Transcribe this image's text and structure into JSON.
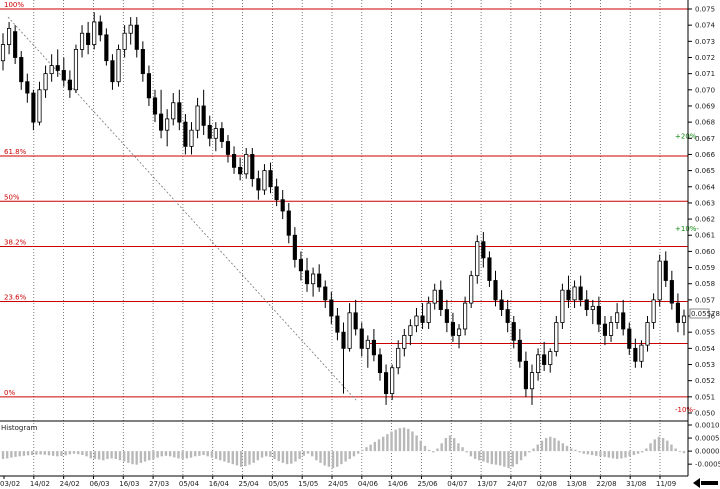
{
  "chart_data": {
    "type": "candlestick",
    "price_axis": {
      "min": 0.05,
      "max": 0.075,
      "tick_labels": [
        "0.075",
        "0.074",
        "0.073",
        "0.072",
        "0.071",
        "0.070",
        "0.069",
        "0.068",
        "0.067",
        "0.066",
        "0.065",
        "0.064",
        "0.063",
        "0.062",
        "0.061",
        "0.060",
        "0.059",
        "0.058",
        "0.057",
        "0.056",
        "0.055",
        "0.054",
        "0.053",
        "0.052",
        "0.051",
        "0.050"
      ],
      "ticks": [
        0.075,
        0.074,
        0.073,
        0.072,
        0.071,
        0.07,
        0.069,
        0.068,
        0.067,
        0.066,
        0.065,
        0.064,
        0.063,
        0.062,
        0.061,
        0.06,
        0.059,
        0.058,
        0.057,
        0.056,
        0.055,
        0.054,
        0.053,
        0.052,
        0.051,
        0.05
      ]
    },
    "current_price": {
      "label": "0.05578",
      "value": 0.05578
    },
    "fib_levels": [
      {
        "label": "100%",
        "value": 0.075
      },
      {
        "label": "61.8%",
        "value": 0.0659
      },
      {
        "label": "50%",
        "value": 0.0631
      },
      {
        "label": "38.2%",
        "value": 0.0603
      },
      {
        "label": "23.6%",
        "value": 0.0569
      },
      {
        "label": "0%",
        "value": 0.051
      }
    ],
    "extra_levels": [
      {
        "value": 0.0543
      }
    ],
    "pct_markers": [
      {
        "label": "+20%-",
        "value": 0.0671,
        "sign": "pos"
      },
      {
        "label": "+10%-",
        "value": 0.0614,
        "sign": "pos"
      },
      {
        "label": "-10%-",
        "value": 0.0502,
        "sign": "neg"
      }
    ],
    "date_labels": [
      "03/02",
      "14/02",
      "24/02",
      "06/03",
      "16/03",
      "27/03",
      "05/04",
      "16/04",
      "25/04",
      "05/05",
      "15/05",
      "24/05",
      "04/06",
      "14/06",
      "25/06",
      "04/07",
      "13/07",
      "24/07",
      "02/08",
      "13/08",
      "22/08",
      "31/08",
      "11/09"
    ],
    "histogram": {
      "title": "Histogram",
      "tick_labels": [
        "0.0010",
        "0.0005",
        "0.0000",
        "-0.0005"
      ],
      "ticks": [
        0.001,
        0.0005,
        0.0,
        -0.0005
      ],
      "min": -0.0008,
      "max": 0.001,
      "values": [
        -0.0003,
        -0.00028,
        -0.00025,
        -0.00022,
        -0.0002,
        -0.00018,
        -0.00016,
        -0.00015,
        -0.00014,
        -0.00013,
        -0.00014,
        -0.00016,
        -0.00018,
        -0.0002,
        -0.00019,
        -0.00016,
        -0.00012,
        -0.0001,
        -0.00012,
        -0.00015,
        -0.0002,
        -0.00028,
        -0.0003,
        -0.00032,
        -0.00035,
        -0.0003,
        -0.00028,
        -0.0003,
        -0.00035,
        -0.0004,
        -0.00045,
        -0.0005,
        -0.00052,
        -0.00045,
        -0.0004,
        -0.00035,
        -0.0003,
        -0.00025,
        -0.0002,
        -0.00018,
        -0.0002,
        -0.00024,
        -0.00028,
        -0.0003,
        -0.00028,
        -0.00025,
        -0.0002,
        -0.00018,
        -0.00015,
        -0.0002,
        -0.00025,
        -0.0003,
        -0.00035,
        -0.0004,
        -0.00045,
        -0.0005,
        -0.00055,
        -0.0006,
        -0.00058,
        -0.00052,
        -0.00045,
        -0.00035,
        -0.00025,
        -0.0002,
        -0.00022,
        -0.0003,
        -0.00038,
        -0.00045,
        -0.0005,
        -0.00048,
        -0.0004,
        -0.0003,
        -0.00018,
        -0.0001,
        -0.0002,
        -0.00035,
        -0.00045,
        -0.00055,
        -0.0006,
        -0.00065,
        -0.0006,
        -0.0005,
        -0.0004,
        -0.0003,
        -0.0002,
        -0.0001,
        5e-05,
        0.00015,
        0.00025,
        0.00035,
        0.00045,
        0.00055,
        0.00065,
        0.00075,
        0.00082,
        0.00088,
        0.0009,
        0.00085,
        0.00075,
        0.0006,
        0.0004,
        0.0002,
        5e-05,
        -5e-05,
        0.0001,
        0.0003,
        0.0005,
        0.0006,
        0.0005,
        0.0003,
        0.00015,
        -5e-05,
        -0.0002,
        -0.0003,
        -0.00035,
        -0.0004,
        -0.00045,
        -0.0005,
        -0.00052,
        -0.00055,
        -0.0006,
        -0.00065,
        -0.0006,
        -0.0005,
        -0.00035,
        -0.0002,
        -5e-05,
        0.0001,
        0.00025,
        0.0004,
        0.0005,
        0.00055,
        0.0005,
        0.0004,
        0.0003,
        0.0002,
        0.0001,
        5e-05,
        -5e-05,
        -0.0001,
        -0.00012,
        -0.00015,
        -0.00018,
        -0.0002,
        -0.00022,
        -0.00025,
        -0.00028,
        -0.0003,
        -0.00028,
        -0.00025,
        -0.0002,
        -0.00015,
        -0.0001,
        -5e-05,
        0.0001,
        0.0003,
        0.00045,
        0.00055,
        0.0005,
        0.0004,
        0.00025,
        0.0001,
        0.0,
        -8e-05
      ]
    },
    "candles": [
      [
        0.0718,
        0.0735,
        0.0712,
        0.0728
      ],
      [
        0.0728,
        0.0742,
        0.0722,
        0.0738
      ],
      [
        0.0736,
        0.074,
        0.0716,
        0.072
      ],
      [
        0.072,
        0.0724,
        0.07,
        0.0705
      ],
      [
        0.0705,
        0.071,
        0.0692,
        0.0698
      ],
      [
        0.0698,
        0.07,
        0.0675,
        0.068
      ],
      [
        0.068,
        0.0705,
        0.0678,
        0.07
      ],
      [
        0.07,
        0.0715,
        0.0695,
        0.071
      ],
      [
        0.071,
        0.0722,
        0.0705,
        0.0715
      ],
      [
        0.0715,
        0.0725,
        0.0708,
        0.0712
      ],
      [
        0.0712,
        0.072,
        0.0702,
        0.0706
      ],
      [
        0.0706,
        0.0712,
        0.0695,
        0.07
      ],
      [
        0.07,
        0.0728,
        0.0698,
        0.0725
      ],
      [
        0.0725,
        0.074,
        0.072,
        0.0735
      ],
      [
        0.0735,
        0.0742,
        0.0722,
        0.0728
      ],
      [
        0.0728,
        0.0748,
        0.0725,
        0.0742
      ],
      [
        0.0742,
        0.0746,
        0.073,
        0.0734
      ],
      [
        0.0734,
        0.0738,
        0.0715,
        0.0718
      ],
      [
        0.0718,
        0.0722,
        0.07,
        0.0705
      ],
      [
        0.0705,
        0.0728,
        0.0702,
        0.0725
      ],
      [
        0.0725,
        0.074,
        0.072,
        0.0735
      ],
      [
        0.0735,
        0.0745,
        0.0728,
        0.074
      ],
      [
        0.074,
        0.0745,
        0.072,
        0.0725
      ],
      [
        0.0725,
        0.073,
        0.0705,
        0.071
      ],
      [
        0.071,
        0.0715,
        0.069,
        0.0695
      ],
      [
        0.0695,
        0.07,
        0.068,
        0.0685
      ],
      [
        0.0685,
        0.07,
        0.067,
        0.0675
      ],
      [
        0.0675,
        0.0688,
        0.0665,
        0.0682
      ],
      [
        0.0682,
        0.0698,
        0.0678,
        0.0692
      ],
      [
        0.0692,
        0.07,
        0.0675,
        0.068
      ],
      [
        0.068,
        0.0685,
        0.066,
        0.0665
      ],
      [
        0.0665,
        0.068,
        0.066,
        0.0675
      ],
      [
        0.0675,
        0.0695,
        0.067,
        0.069
      ],
      [
        0.069,
        0.07,
        0.0672,
        0.0678
      ],
      [
        0.0678,
        0.0684,
        0.0665,
        0.067
      ],
      [
        0.067,
        0.068,
        0.0662,
        0.0676
      ],
      [
        0.0676,
        0.068,
        0.0664,
        0.0668
      ],
      [
        0.0668,
        0.0672,
        0.0655,
        0.066
      ],
      [
        0.066,
        0.0665,
        0.0648,
        0.0652
      ],
      [
        0.0652,
        0.0658,
        0.0644,
        0.0648
      ],
      [
        0.0648,
        0.0664,
        0.0645,
        0.066
      ],
      [
        0.066,
        0.0664,
        0.064,
        0.0645
      ],
      [
        0.0645,
        0.065,
        0.0632,
        0.0638
      ],
      [
        0.0638,
        0.0654,
        0.0635,
        0.065
      ],
      [
        0.065,
        0.0655,
        0.0636,
        0.064
      ],
      [
        0.064,
        0.0645,
        0.0628,
        0.0632
      ],
      [
        0.0632,
        0.0638,
        0.062,
        0.0625
      ],
      [
        0.0625,
        0.063,
        0.0605,
        0.061
      ],
      [
        0.061,
        0.0615,
        0.059,
        0.0595
      ],
      [
        0.0595,
        0.06,
        0.0582,
        0.0588
      ],
      [
        0.0588,
        0.0596,
        0.0575,
        0.058
      ],
      [
        0.058,
        0.059,
        0.0572,
        0.0586
      ],
      [
        0.0586,
        0.0592,
        0.0575,
        0.0578
      ],
      [
        0.0578,
        0.0582,
        0.0565,
        0.057
      ],
      [
        0.057,
        0.0575,
        0.0555,
        0.056
      ],
      [
        0.056,
        0.0565,
        0.0545,
        0.055
      ],
      [
        0.055,
        0.0556,
        0.0512,
        0.054
      ],
      [
        0.054,
        0.0568,
        0.0538,
        0.0562
      ],
      [
        0.0562,
        0.057,
        0.0548,
        0.0552
      ],
      [
        0.0552,
        0.0556,
        0.0535,
        0.054
      ],
      [
        0.054,
        0.0548,
        0.0528,
        0.0545
      ],
      [
        0.0545,
        0.0552,
        0.0532,
        0.0536
      ],
      [
        0.0536,
        0.054,
        0.052,
        0.0525
      ],
      [
        0.0525,
        0.053,
        0.0505,
        0.0512
      ],
      [
        0.0512,
        0.053,
        0.0508,
        0.0528
      ],
      [
        0.0528,
        0.0545,
        0.0524,
        0.054
      ],
      [
        0.054,
        0.0552,
        0.0535,
        0.0548
      ],
      [
        0.0548,
        0.0558,
        0.0542,
        0.0554
      ],
      [
        0.0554,
        0.0565,
        0.055,
        0.056
      ],
      [
        0.056,
        0.0568,
        0.0552,
        0.0556
      ],
      [
        0.0556,
        0.0572,
        0.0552,
        0.0568
      ],
      [
        0.0568,
        0.058,
        0.0564,
        0.0576
      ],
      [
        0.0576,
        0.0582,
        0.056,
        0.0564
      ],
      [
        0.0564,
        0.057,
        0.055,
        0.0556
      ],
      [
        0.0556,
        0.0562,
        0.0544,
        0.0548
      ],
      [
        0.0548,
        0.0555,
        0.054,
        0.0552
      ],
      [
        0.0552,
        0.0572,
        0.0548,
        0.0568
      ],
      [
        0.0568,
        0.0588,
        0.0565,
        0.0585
      ],
      [
        0.0585,
        0.061,
        0.058,
        0.0606
      ],
      [
        0.0606,
        0.0612,
        0.059,
        0.0596
      ],
      [
        0.0596,
        0.06,
        0.0578,
        0.0582
      ],
      [
        0.0582,
        0.0588,
        0.0566,
        0.057
      ],
      [
        0.057,
        0.0576,
        0.056,
        0.0564
      ],
      [
        0.0564,
        0.057,
        0.055,
        0.0556
      ],
      [
        0.0556,
        0.056,
        0.054,
        0.0545
      ],
      [
        0.0545,
        0.0552,
        0.0528,
        0.0532
      ],
      [
        0.0532,
        0.0538,
        0.051,
        0.0515
      ],
      [
        0.0515,
        0.053,
        0.0505,
        0.0525
      ],
      [
        0.0525,
        0.054,
        0.052,
        0.0536
      ],
      [
        0.0536,
        0.0544,
        0.0526,
        0.053
      ],
      [
        0.053,
        0.054,
        0.0525,
        0.0538
      ],
      [
        0.0538,
        0.056,
        0.0535,
        0.0556
      ],
      [
        0.0556,
        0.058,
        0.0552,
        0.0576
      ],
      [
        0.0576,
        0.0585,
        0.0565,
        0.057
      ],
      [
        0.057,
        0.0582,
        0.0565,
        0.0578
      ],
      [
        0.0578,
        0.0585,
        0.0566,
        0.057
      ],
      [
        0.057,
        0.0576,
        0.056,
        0.0564
      ],
      [
        0.0564,
        0.057,
        0.0555,
        0.0566
      ],
      [
        0.0566,
        0.0572,
        0.055,
        0.0555
      ],
      [
        0.0555,
        0.056,
        0.0542,
        0.0548
      ],
      [
        0.0548,
        0.056,
        0.0544,
        0.0556
      ],
      [
        0.0556,
        0.0568,
        0.0552,
        0.0562
      ],
      [
        0.0562,
        0.057,
        0.0548,
        0.0552
      ],
      [
        0.0552,
        0.0556,
        0.0536,
        0.054
      ],
      [
        0.054,
        0.0546,
        0.0528,
        0.0532
      ],
      [
        0.0532,
        0.0545,
        0.0528,
        0.0542
      ],
      [
        0.0542,
        0.056,
        0.0538,
        0.0556
      ],
      [
        0.0556,
        0.0574,
        0.0552,
        0.057
      ],
      [
        0.057,
        0.0598,
        0.0566,
        0.0594
      ],
      [
        0.0594,
        0.06,
        0.0578,
        0.0582
      ],
      [
        0.0582,
        0.0588,
        0.0564,
        0.0568
      ],
      [
        0.0568,
        0.0574,
        0.055,
        0.0556
      ],
      [
        0.0556,
        0.0564,
        0.0548,
        0.056
      ]
    ]
  }
}
